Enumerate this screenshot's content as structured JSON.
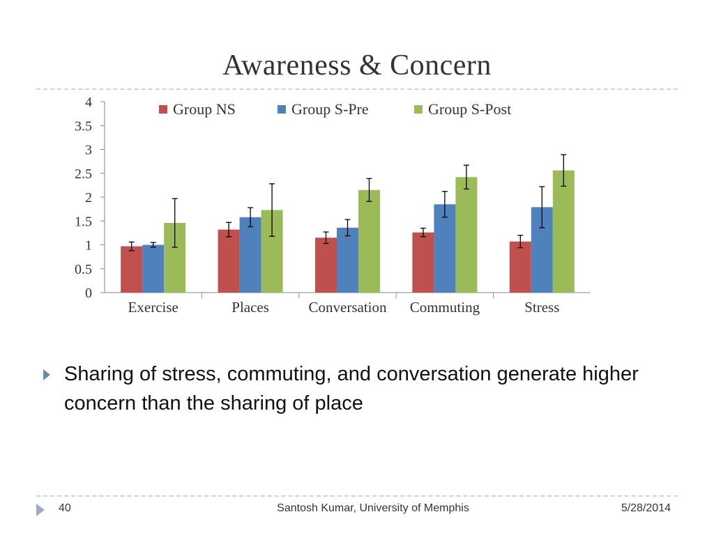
{
  "slide": {
    "title": "Awareness & Concern",
    "bullet": "Sharing of stress, commuting, and conversation generate higher concern than the sharing of place",
    "footer": {
      "page_number": "40",
      "author": "Santosh Kumar, University of Memphis",
      "date": "5/28/2014"
    }
  },
  "chart_data": {
    "type": "bar",
    "title": "",
    "xlabel": "",
    "ylabel": "",
    "categories": [
      "Exercise",
      "Places",
      "Conversation",
      "Commuting",
      "Stress"
    ],
    "ylim": [
      0,
      4
    ],
    "yticks": [
      "0",
      "0.5",
      "1",
      "1.5",
      "2",
      "2.5",
      "3",
      "3.5",
      "4"
    ],
    "grid": false,
    "legend_position": "top",
    "series": [
      {
        "name": "Group NS",
        "color": "#c0504d",
        "values": [
          0.97,
          1.32,
          1.15,
          1.26,
          1.07
        ],
        "errors": [
          0.09,
          0.15,
          0.12,
          0.09,
          0.13
        ]
      },
      {
        "name": "Group S-Pre",
        "color": "#4f81bd",
        "values": [
          1.0,
          1.58,
          1.36,
          1.85,
          1.79
        ],
        "errors": [
          0.05,
          0.2,
          0.17,
          0.27,
          0.43
        ]
      },
      {
        "name": "Group S-Post",
        "color": "#9bbb59",
        "values": [
          1.46,
          1.73,
          2.15,
          2.42,
          2.56
        ],
        "errors": [
          0.51,
          0.55,
          0.24,
          0.25,
          0.33
        ]
      }
    ]
  }
}
